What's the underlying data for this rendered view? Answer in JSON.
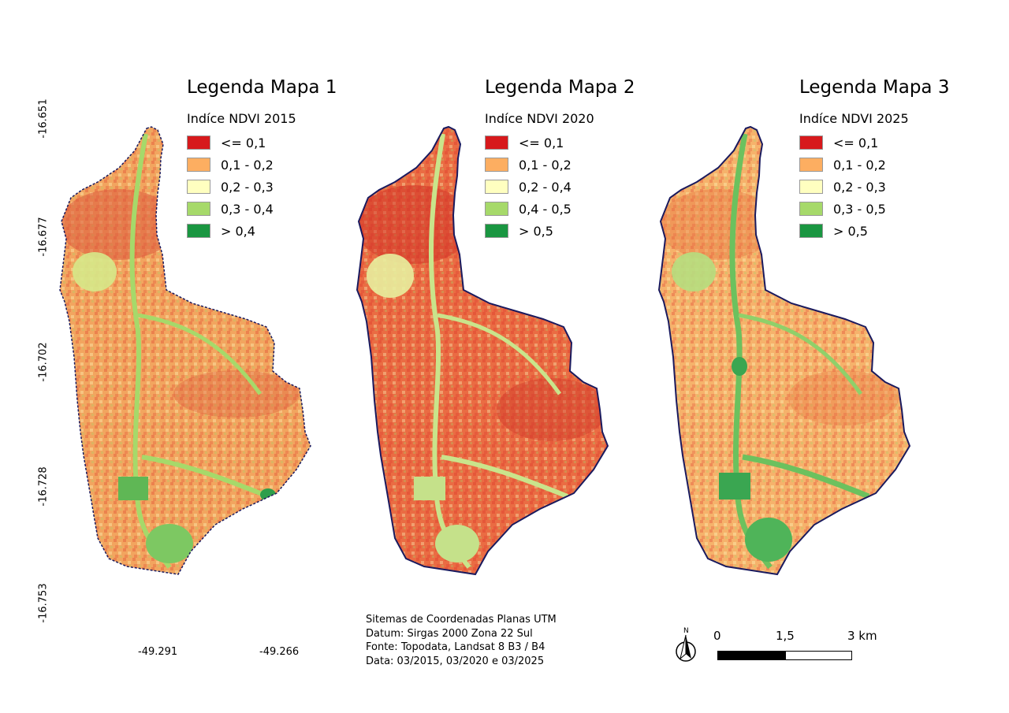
{
  "colors": {
    "class1": "#d7191c",
    "class2": "#fdae61",
    "class3": "#ffffc0",
    "class4": "#a6d96a",
    "class5": "#1a9641",
    "boundary": "#1a1a5e"
  },
  "maps": [
    {
      "legend_title": "Legenda Mapa 1",
      "index_label": "Indíce NDVI 2015",
      "classes": [
        "<= 0,1",
        "0,1 - 0,2",
        "0,2 - 0,3",
        "0,3 - 0,4",
        "> 0,4"
      ]
    },
    {
      "legend_title": "Legenda Mapa 2",
      "index_label": "Indíce NDVI 2020",
      "classes": [
        "<= 0,1",
        "0,1 - 0,2",
        "0,2 - 0,4",
        "0,4 - 0,5",
        "> 0,5"
      ]
    },
    {
      "legend_title": "Legenda Mapa 3",
      "index_label": "Indíce NDVI 2025",
      "classes": [
        "<= 0,1",
        "0,1 - 0,2",
        "0,2 - 0,3",
        "0,3 - 0,5",
        "> 0,5"
      ]
    }
  ],
  "latitude_labels": [
    "-16.651",
    "-16.677",
    "-16.702",
    "-16.728",
    "-16.753"
  ],
  "longitude_labels": [
    "-49.291",
    "-49.266"
  ],
  "credits": [
    "Sitemas de Coordenadas Planas UTM",
    "Datum: Sirgas 2000 Zona 22 Sul",
    "Fonte: Topodata, Landsat 8 B3 / B4",
    "Data: 03/2015, 03/2020 e 03/2025"
  ],
  "scale": {
    "labels": [
      "0",
      "1,5",
      "3 km"
    ]
  },
  "north_arrow": {
    "label": "N",
    "icon": "north-arrow-icon"
  }
}
